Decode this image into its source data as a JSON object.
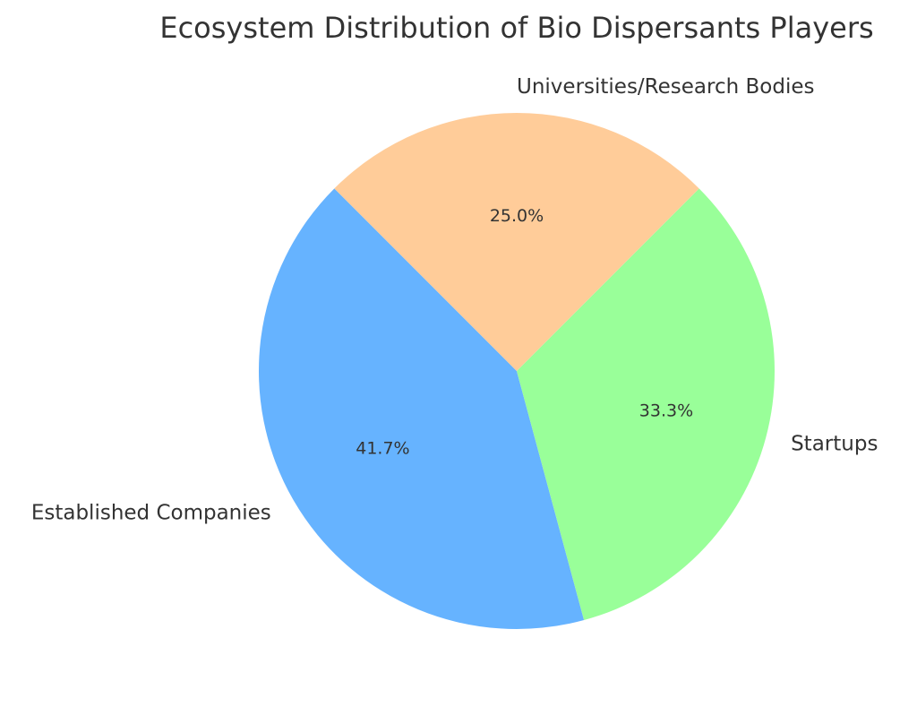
{
  "chart_data": {
    "type": "pie",
    "title": "Ecosystem Distribution of Bio Dispersants Players",
    "slices": [
      {
        "label": "Established Companies",
        "value": 41.7,
        "pct_label": "41.7%",
        "color": "#66b3ff"
      },
      {
        "label": "Startups",
        "value": 33.3,
        "pct_label": "33.3%",
        "color": "#99ff99"
      },
      {
        "label": "Universities/Research Bodies",
        "value": 25.0,
        "pct_label": "25.0%",
        "color": "#ffcc99"
      }
    ],
    "start_angle_deg": 135,
    "direction": "counterclockwise",
    "legend": "none"
  }
}
